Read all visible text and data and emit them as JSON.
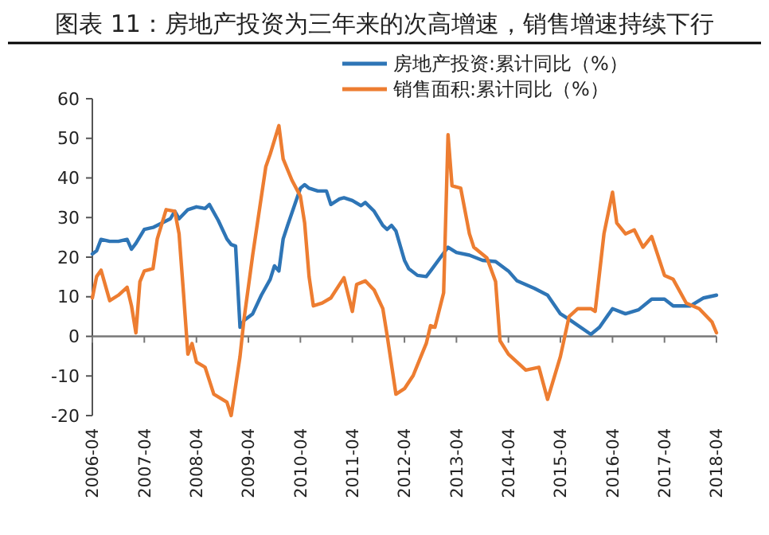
{
  "chart_data": {
    "type": "line",
    "title": "图表 11：房地产投资为三年来的次高增速，销售增速持续下行",
    "legend": "top right",
    "xlim": [
      "2006-04",
      "2018-04"
    ],
    "xticks": [
      "2006-04",
      "2007-04",
      "2008-04",
      "2009-04",
      "2010-04",
      "2011-04",
      "2012-04",
      "2013-04",
      "2014-04",
      "2015-04",
      "2016-04",
      "2017-04",
      "2018-04"
    ],
    "ylim": [
      -20,
      60
    ],
    "yticks": [
      -20,
      -10,
      0,
      10,
      20,
      30,
      40,
      50,
      60
    ],
    "series": [
      {
        "name": "房地产投资:累计同比（%）",
        "color": "#2e75b6",
        "x": [
          "2006-04",
          "2006-05",
          "2006-06",
          "2006-08",
          "2006-10",
          "2006-12",
          "2007-01",
          "2007-02",
          "2007-04",
          "2007-06",
          "2007-08",
          "2007-10",
          "2007-11",
          "2007-12",
          "2008-02",
          "2008-04",
          "2008-06",
          "2008-07",
          "2008-09",
          "2008-11",
          "2008-12",
          "2009-01",
          "2009-02",
          "2009-03",
          "2009-05",
          "2009-07",
          "2009-09",
          "2009-10",
          "2009-11",
          "2009-12",
          "2010-01",
          "2010-04",
          "2010-05",
          "2010-06",
          "2010-08",
          "2010-10",
          "2010-11",
          "2011-01",
          "2011-02",
          "2011-04",
          "2011-06",
          "2011-07",
          "2011-09",
          "2011-11",
          "2011-12",
          "2012-01",
          "2012-02",
          "2012-04",
          "2012-05",
          "2012-07",
          "2012-09",
          "2012-10",
          "2013-02",
          "2013-04",
          "2013-07",
          "2013-10",
          "2014-01",
          "2014-04",
          "2014-06",
          "2014-10",
          "2015-01",
          "2015-04",
          "2015-06",
          "2015-11",
          "2016-01",
          "2016-04",
          "2016-07",
          "2016-10",
          "2017-01",
          "2017-04",
          "2017-06",
          "2017-10",
          "2018-01",
          "2018-04"
        ],
        "values": [
          20.8,
          21.6,
          24.5,
          24,
          24,
          24.5,
          22,
          23.5,
          27,
          27.5,
          28.6,
          29.7,
          31.6,
          29.7,
          32,
          32.7,
          32.3,
          33.3,
          29.3,
          24.6,
          23.2,
          22.8,
          2.3,
          4,
          5.7,
          10.4,
          14.4,
          17.8,
          16.5,
          24.6,
          28,
          37.4,
          38.3,
          37.4,
          36.7,
          36.7,
          33.3,
          34.7,
          35,
          34.3,
          33,
          33.8,
          31.6,
          28,
          27,
          28,
          26.6,
          19.2,
          17.1,
          15.4,
          15.1,
          16.5,
          22.5,
          21.2,
          20.5,
          19.2,
          18.9,
          16.5,
          14,
          12.1,
          10.4,
          5.7,
          4.3,
          0.5,
          2.3,
          7,
          5.7,
          6.7,
          9.4,
          9.4,
          7.7,
          7.7,
          9.7,
          10.4
        ]
      },
      {
        "name": "销售面积:累计同比（%）",
        "color": "#ed7d31",
        "x": [
          "2006-04",
          "2006-05",
          "2006-06",
          "2006-08",
          "2006-10",
          "2006-12",
          "2007-01",
          "2007-02",
          "2007-03",
          "2007-04",
          "2007-06",
          "2007-07",
          "2007-09",
          "2007-11",
          "2007-12",
          "2008-01",
          "2008-02",
          "2008-03",
          "2008-04",
          "2008-06",
          "2008-08",
          "2008-11",
          "2008-12",
          "2009-02",
          "2009-03",
          "2009-05",
          "2009-08",
          "2009-09",
          "2009-11",
          "2009-12",
          "2010-02",
          "2010-04",
          "2010-05",
          "2010-06",
          "2010-07",
          "2010-09",
          "2010-11",
          "2011-01",
          "2011-02",
          "2011-04",
          "2011-05",
          "2011-07",
          "2011-09",
          "2011-11",
          "2011-12",
          "2012-02",
          "2012-04",
          "2012-06",
          "2012-08",
          "2012-09",
          "2012-10",
          "2012-11",
          "2013-01",
          "2013-02",
          "2013-03",
          "2013-05",
          "2013-07",
          "2013-08",
          "2013-11",
          "2014-01",
          "2014-02",
          "2014-04",
          "2014-06",
          "2014-08",
          "2014-11",
          "2015-01",
          "2015-04",
          "2015-06",
          "2015-08",
          "2015-11",
          "2015-12",
          "2016-02",
          "2016-04",
          "2016-05",
          "2016-07",
          "2016-09",
          "2016-11",
          "2017-01",
          "2017-04",
          "2017-06",
          "2017-09",
          "2017-12",
          "2018-03",
          "2018-04"
        ],
        "values": [
          9.7,
          15.1,
          16.7,
          9,
          10.4,
          12.4,
          7.7,
          0.9,
          13.8,
          16.5,
          17.1,
          24.6,
          32,
          31.6,
          25.9,
          11,
          -4.5,
          -1.8,
          -6.5,
          -7.8,
          -14.6,
          -16.6,
          -20,
          -5.1,
          4.3,
          20.5,
          42.8,
          46,
          53.2,
          44.8,
          39.4,
          35.4,
          28.6,
          15.1,
          7.7,
          8.4,
          9.7,
          13.1,
          14.8,
          6.3,
          13.1,
          14,
          11.7,
          7,
          0.3,
          -14.6,
          -13.2,
          -9.9,
          -4.5,
          -1.8,
          2.7,
          2.3,
          11,
          50.9,
          38,
          37.4,
          25.9,
          22.5,
          19.8,
          13.8,
          -1.1,
          -4.5,
          -6.5,
          -8.5,
          -7.8,
          -15.9,
          -5.1,
          5,
          7,
          7,
          6.3,
          25.9,
          36.4,
          28.6,
          25.9,
          26.9,
          22.5,
          25.2,
          15.4,
          14.4,
          8.4,
          7,
          3.6,
          0.9
        ]
      }
    ]
  }
}
